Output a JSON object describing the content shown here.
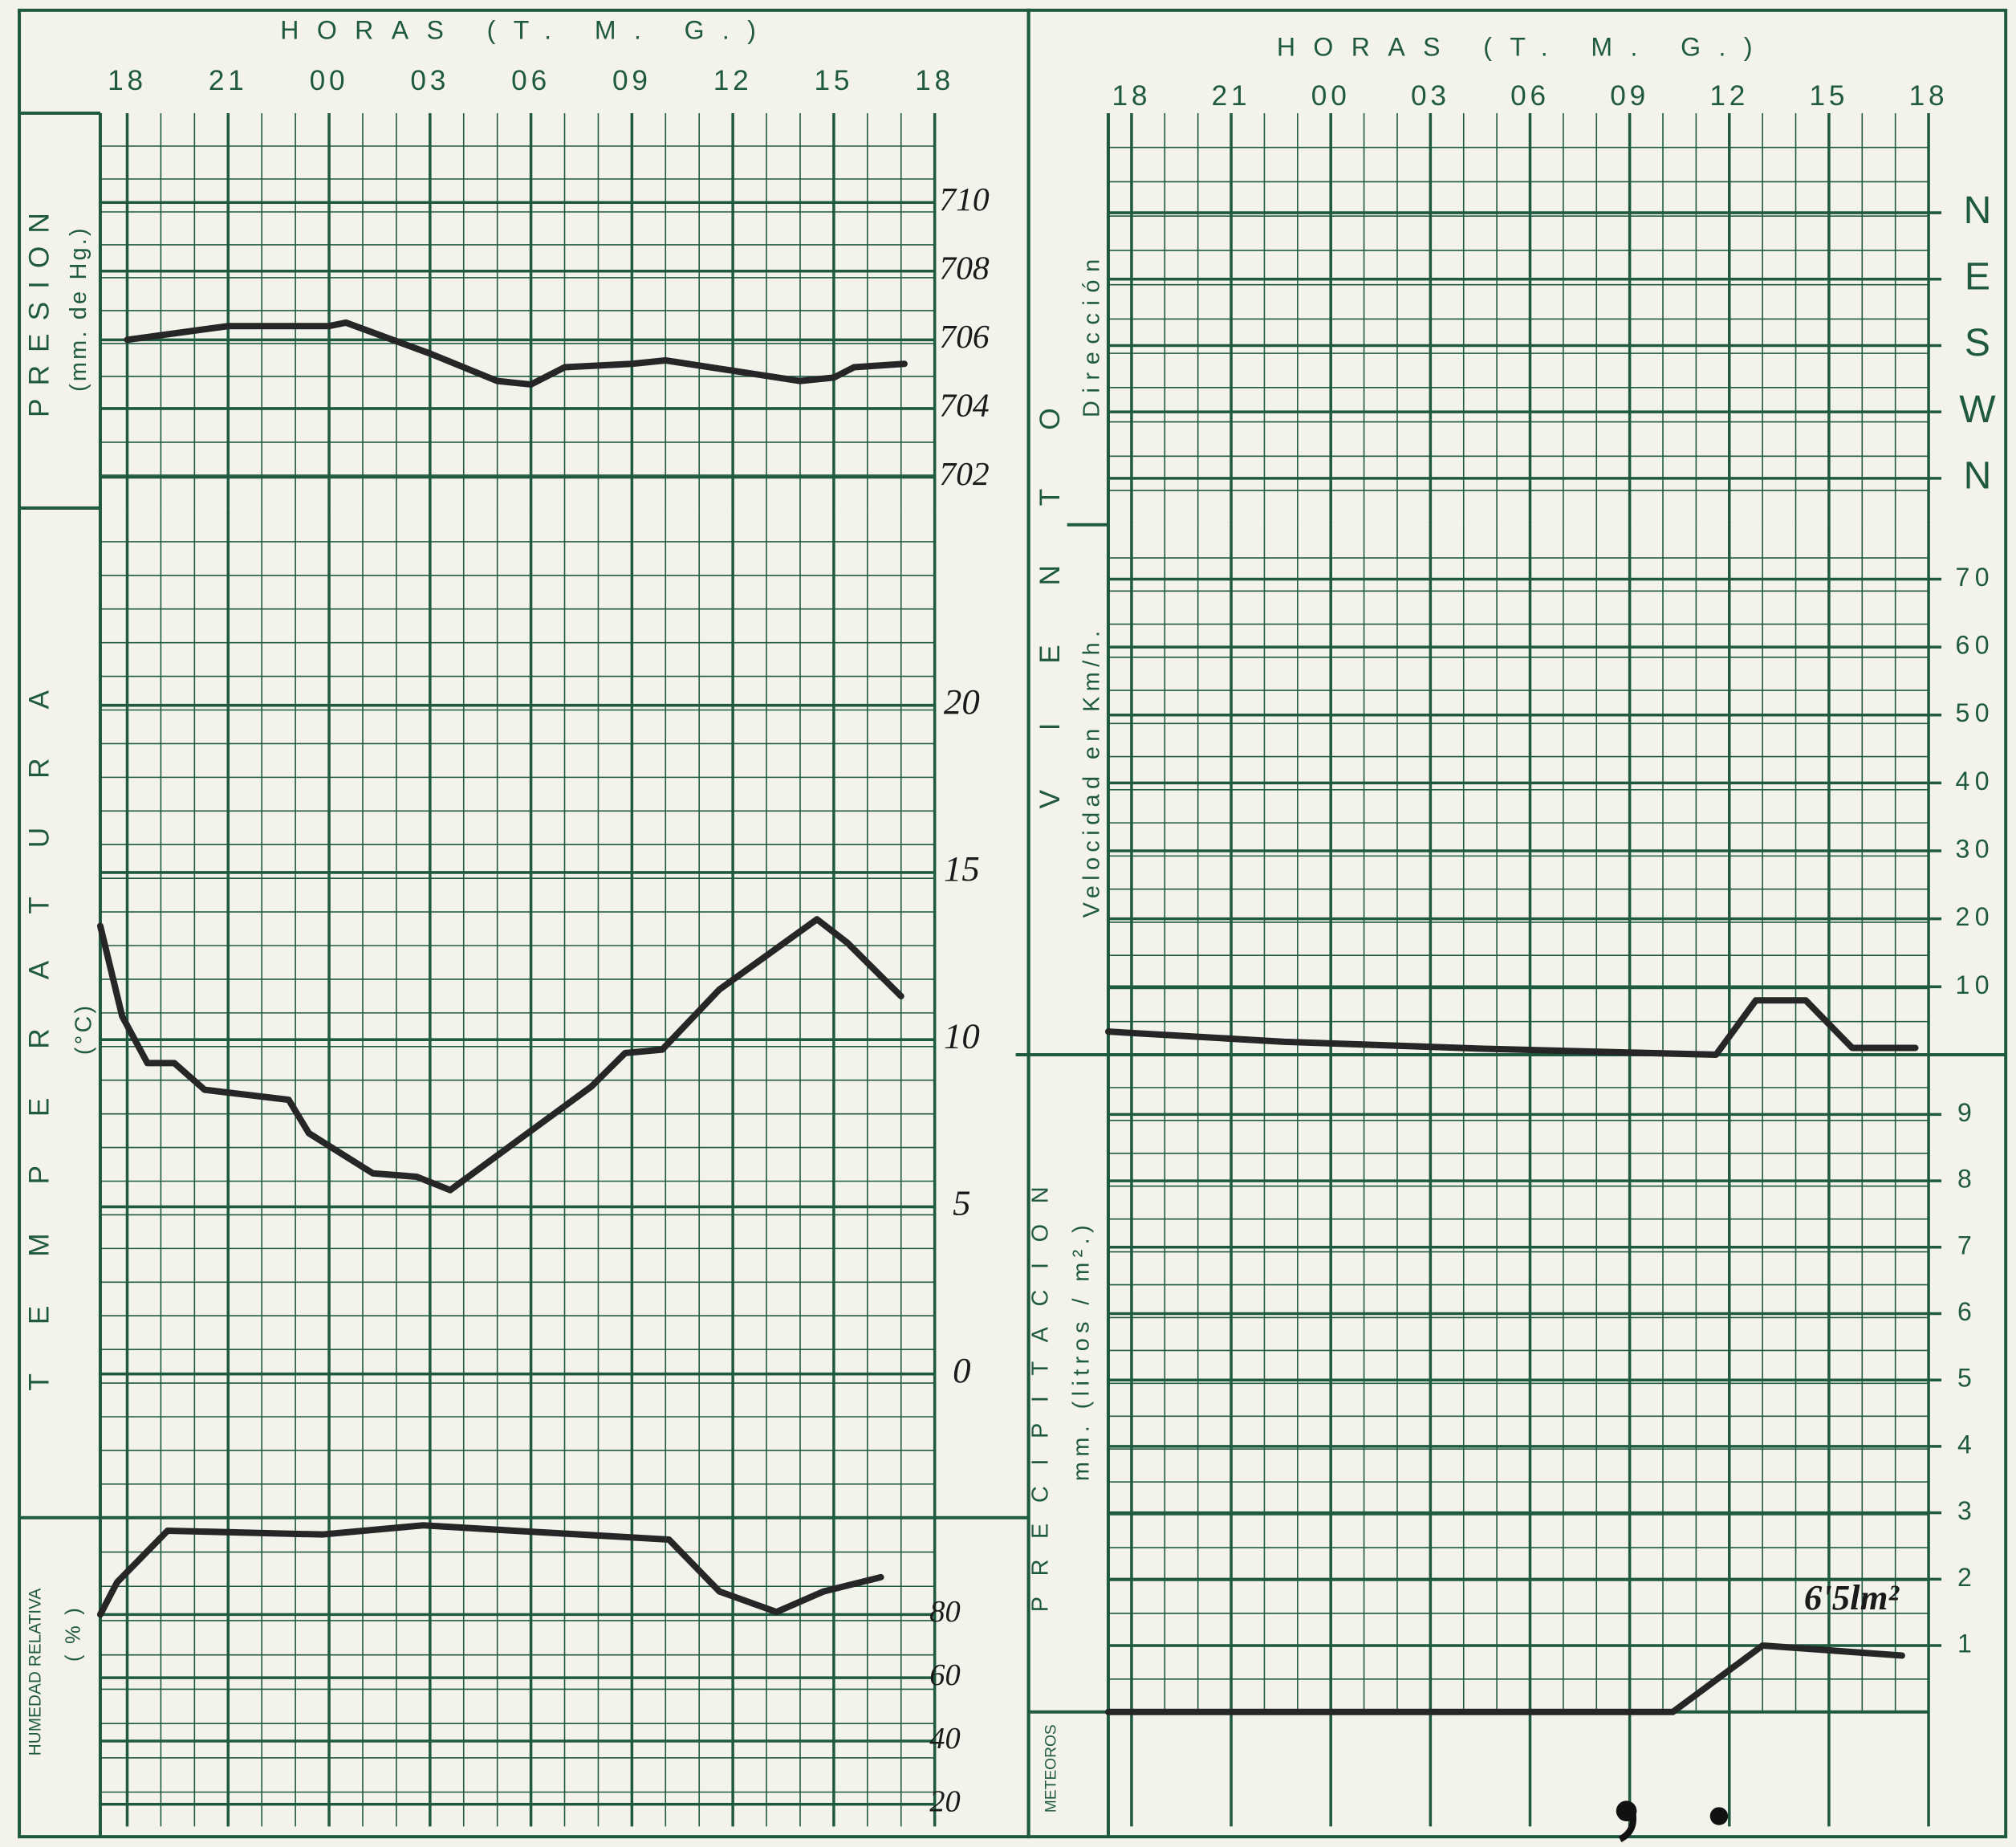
{
  "left_header": "HORAS (T. M. G.)",
  "right_header": "HORAS (T. M. G.)",
  "wind_title": "VIENTO",
  "meteoros_label": "METEOROS",
  "chart_data": [
    {
      "type": "line",
      "ylabel": "PRESION",
      "yunit": "(mm. de Hg.)",
      "xlim": [
        17.2,
        42
      ],
      "xticks": [
        18,
        21,
        {
          "value": 24,
          "label": "00"
        },
        {
          "value": 27,
          "label": "03"
        },
        {
          "value": 30,
          "label": "06"
        },
        {
          "value": 33,
          "label": "09"
        },
        {
          "value": 36,
          "label": "12"
        },
        {
          "value": 39,
          "label": "15"
        },
        {
          "value": 42,
          "label": "18"
        }
      ],
      "ylim": [
        701.1,
        712.6
      ],
      "yticks": [
        702,
        704,
        706,
        708,
        710
      ],
      "grid": true,
      "color": "#262626",
      "x": [
        18,
        21,
        24,
        24.5,
        27,
        29,
        30,
        31,
        33,
        34,
        36,
        38,
        39,
        39.6,
        41.1
      ],
      "values": [
        706,
        706.4,
        706.4,
        706.5,
        705.6,
        704.8,
        704.7,
        705.2,
        705.3,
        705.4,
        705.1,
        704.8,
        704.9,
        705.2,
        705.3
      ]
    },
    {
      "type": "line",
      "ylabel": "TEMPERATURA",
      "yunit": "(°C)",
      "xlim": [
        17.2,
        42
      ],
      "ylim": [
        -4.3,
        25.9
      ],
      "yticks": [
        0,
        5,
        10,
        15,
        20
      ],
      "grid": true,
      "color": "#262626",
      "x": [
        17.2,
        17.85,
        18.6,
        19.4,
        20.3,
        22.8,
        23.4,
        25.3,
        26.6,
        27.6,
        29.9,
        31.8,
        32.8,
        33.9,
        35.6,
        38.5,
        39.4,
        41.0
      ],
      "values": [
        13.4,
        10.7,
        9.3,
        9.3,
        8.5,
        8.2,
        7.2,
        6.0,
        5.9,
        5.5,
        7.2,
        8.6,
        9.6,
        9.7,
        11.5,
        13.6,
        12.9,
        11.3
      ]
    },
    {
      "type": "line",
      "ylabel": "HUMEDAD RELATIVA",
      "yunit": "( % )",
      "xlim": [
        17.2,
        42
      ],
      "ylim": [
        13,
        110.6
      ],
      "yticks": [
        20,
        40,
        60,
        80
      ],
      "grid": true,
      "color": "#262626",
      "x": [
        17.2,
        17.7,
        19.2,
        23.8,
        26.8,
        29.5,
        34.1,
        35.6,
        37.3,
        38.7,
        40.4
      ],
      "values": [
        80,
        90.2,
        106.5,
        105.3,
        108.2,
        106.5,
        103.7,
        87.3,
        80.8,
        87.3,
        91.8
      ]
    },
    {
      "type": "line",
      "ylabel": "Dirección",
      "xlim": [
        17.3,
        42
      ],
      "xticks": [
        18,
        21,
        {
          "value": 24,
          "label": "00"
        },
        {
          "value": 27,
          "label": "03"
        },
        {
          "value": 30,
          "label": "06"
        },
        {
          "value": 33,
          "label": "09"
        },
        {
          "value": 36,
          "label": "12"
        },
        {
          "value": 39,
          "label": "15"
        },
        {
          "value": 42,
          "label": "18"
        }
      ],
      "ylim": [
        -0.7,
        5.5
      ],
      "yticks": [
        {
          "value": 0,
          "label": "N"
        },
        {
          "value": 1,
          "label": "W"
        },
        {
          "value": 2,
          "label": "S"
        },
        {
          "value": 3,
          "label": "E"
        },
        {
          "value": 4,
          "label": "N"
        }
      ],
      "grid": true
    },
    {
      "type": "line",
      "ylabel": "Velocidad en Km/h.",
      "xlim": [
        17.3,
        42
      ],
      "ylim": [
        0,
        78
      ],
      "yticks": [
        10,
        20,
        30,
        40,
        50,
        60,
        70
      ],
      "grid": true,
      "color": "#262626",
      "x": [
        17.3,
        22.6,
        28.5,
        32.3,
        35.6,
        36.8,
        38.3,
        39.7,
        41.6
      ],
      "values": [
        3.4,
        1.9,
        0.9,
        0.4,
        0,
        8.0,
        8.0,
        1.0,
        1.0
      ]
    },
    {
      "type": "line",
      "ylabel": "PRECIPITACION",
      "yunit": "mm. (litros / m².)",
      "xlim": [
        17.3,
        42
      ],
      "ylim": [
        0,
        9.9
      ],
      "yticks": [
        1,
        2,
        3,
        4,
        5,
        6,
        7,
        8,
        9
      ],
      "grid": true,
      "color": "#262626",
      "x": [
        17.3,
        26.5,
        34.3,
        37.0,
        41.2
      ],
      "values": [
        0,
        0,
        0,
        1.0,
        0.85
      ],
      "annotation": "6'5lm²"
    }
  ]
}
